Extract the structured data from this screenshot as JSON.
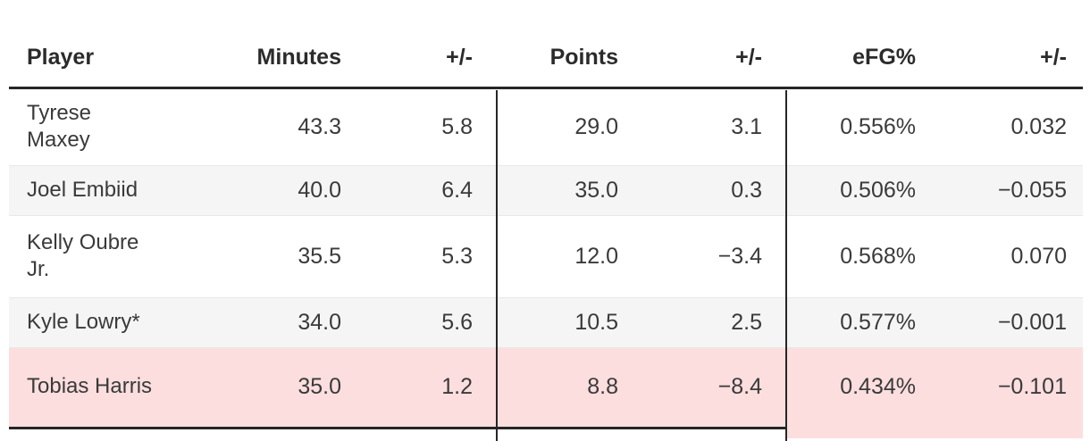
{
  "table": {
    "columns": [
      {
        "label": "Player"
      },
      {
        "label": "Minutes"
      },
      {
        "label": "+/-"
      },
      {
        "label": "Points"
      },
      {
        "label": "+/-"
      },
      {
        "label": "eFG%"
      },
      {
        "label": "+/-"
      }
    ],
    "rows": [
      {
        "cells": [
          "Tyrese Maxey",
          "43.3",
          "5.8",
          "29.0",
          "3.1",
          "0.556%",
          "0.032"
        ],
        "highlight": false
      },
      {
        "cells": [
          "Joel Embiid",
          "40.0",
          "6.4",
          "35.0",
          "0.3",
          "0.506%",
          "−0.055"
        ],
        "highlight": false
      },
      {
        "cells": [
          "Kelly Oubre Jr.",
          "35.5",
          "5.3",
          "12.0",
          "−3.4",
          "0.568%",
          "0.070"
        ],
        "highlight": false
      },
      {
        "cells": [
          "Kyle Lowry*",
          "34.0",
          "5.6",
          "10.5",
          "2.5",
          "0.577%",
          "−0.001"
        ],
        "highlight": false
      },
      {
        "cells": [
          "Tobias Harris",
          "35.0",
          "1.2",
          "8.8",
          "−8.4",
          "0.434%",
          "−0.101"
        ],
        "highlight": true
      }
    ]
  },
  "colors": {
    "highlight_row_bg": "#fcdede",
    "alt_row_bg": "#f5f5f5",
    "rule_dark": "#262626",
    "row_separator": "#e8e8e8",
    "header_text": "#2b2b2b",
    "body_text": "#3a3a3a"
  },
  "chart_data": {
    "type": "table",
    "columns": [
      "Player",
      "Minutes",
      "+/-",
      "Points",
      "+/-",
      "eFG%",
      "+/-"
    ],
    "rows": [
      [
        "Tyrese Maxey",
        43.3,
        5.8,
        29.0,
        3.1,
        "0.556%",
        0.032
      ],
      [
        "Joel Embiid",
        40.0,
        6.4,
        35.0,
        0.3,
        "0.506%",
        -0.055
      ],
      [
        "Kelly Oubre Jr.",
        35.5,
        5.3,
        12.0,
        -3.4,
        "0.568%",
        0.07
      ],
      [
        "Kyle Lowry*",
        34.0,
        5.6,
        10.5,
        2.5,
        "0.577%",
        -0.001
      ],
      [
        "Tobias Harris",
        35.0,
        1.2,
        8.8,
        -8.4,
        "0.434%",
        -0.101
      ]
    ],
    "highlighted_row": "Tobias Harris",
    "layout_hints": {
      "column_group_dividers_after": [
        "+/- (minutes)",
        "+/- (points)"
      ],
      "zebra_striping": true
    }
  }
}
